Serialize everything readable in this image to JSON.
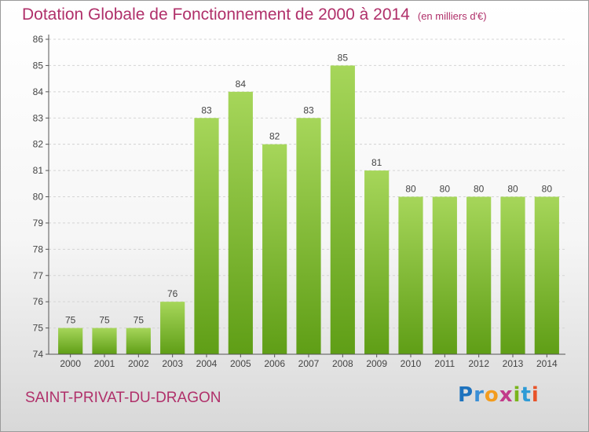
{
  "title": "Dotation Globale de Fonctionnement de 2000 à 2014",
  "unit": "(en milliers d'€)",
  "commune": "SAINT-PRIVAT-DU-DRAGON",
  "logo": {
    "letters": [
      "P",
      "r",
      "o",
      "x",
      "i",
      "t",
      "i"
    ],
    "colors": [
      "#1e73be",
      "#3a8fd6",
      "#f39c1e",
      "#c23b8a",
      "#7ab51d",
      "#2e9bd6",
      "#e8542a"
    ]
  },
  "colors": {
    "bar_light": "#a6d65a",
    "bar_dark": "#5f9e16",
    "grid": "#d4d4d4",
    "axis": "#555555",
    "title": "#b0306a"
  },
  "chart_data": {
    "type": "bar",
    "title": "Dotation Globale de Fonctionnement de 2000 à 2014",
    "xlabel": "",
    "ylabel": "",
    "ylim": [
      74,
      86
    ],
    "yticks": [
      74,
      75,
      76,
      77,
      78,
      79,
      80,
      81,
      82,
      83,
      84,
      85,
      86
    ],
    "categories": [
      "2000",
      "2001",
      "2002",
      "2003",
      "2004",
      "2005",
      "2006",
      "2007",
      "2008",
      "2009",
      "2010",
      "2011",
      "2012",
      "2013",
      "2014"
    ],
    "values": [
      75,
      75,
      75,
      76,
      83,
      84,
      82,
      83,
      85,
      81,
      80,
      80,
      80,
      80,
      80
    ],
    "grid": true
  }
}
